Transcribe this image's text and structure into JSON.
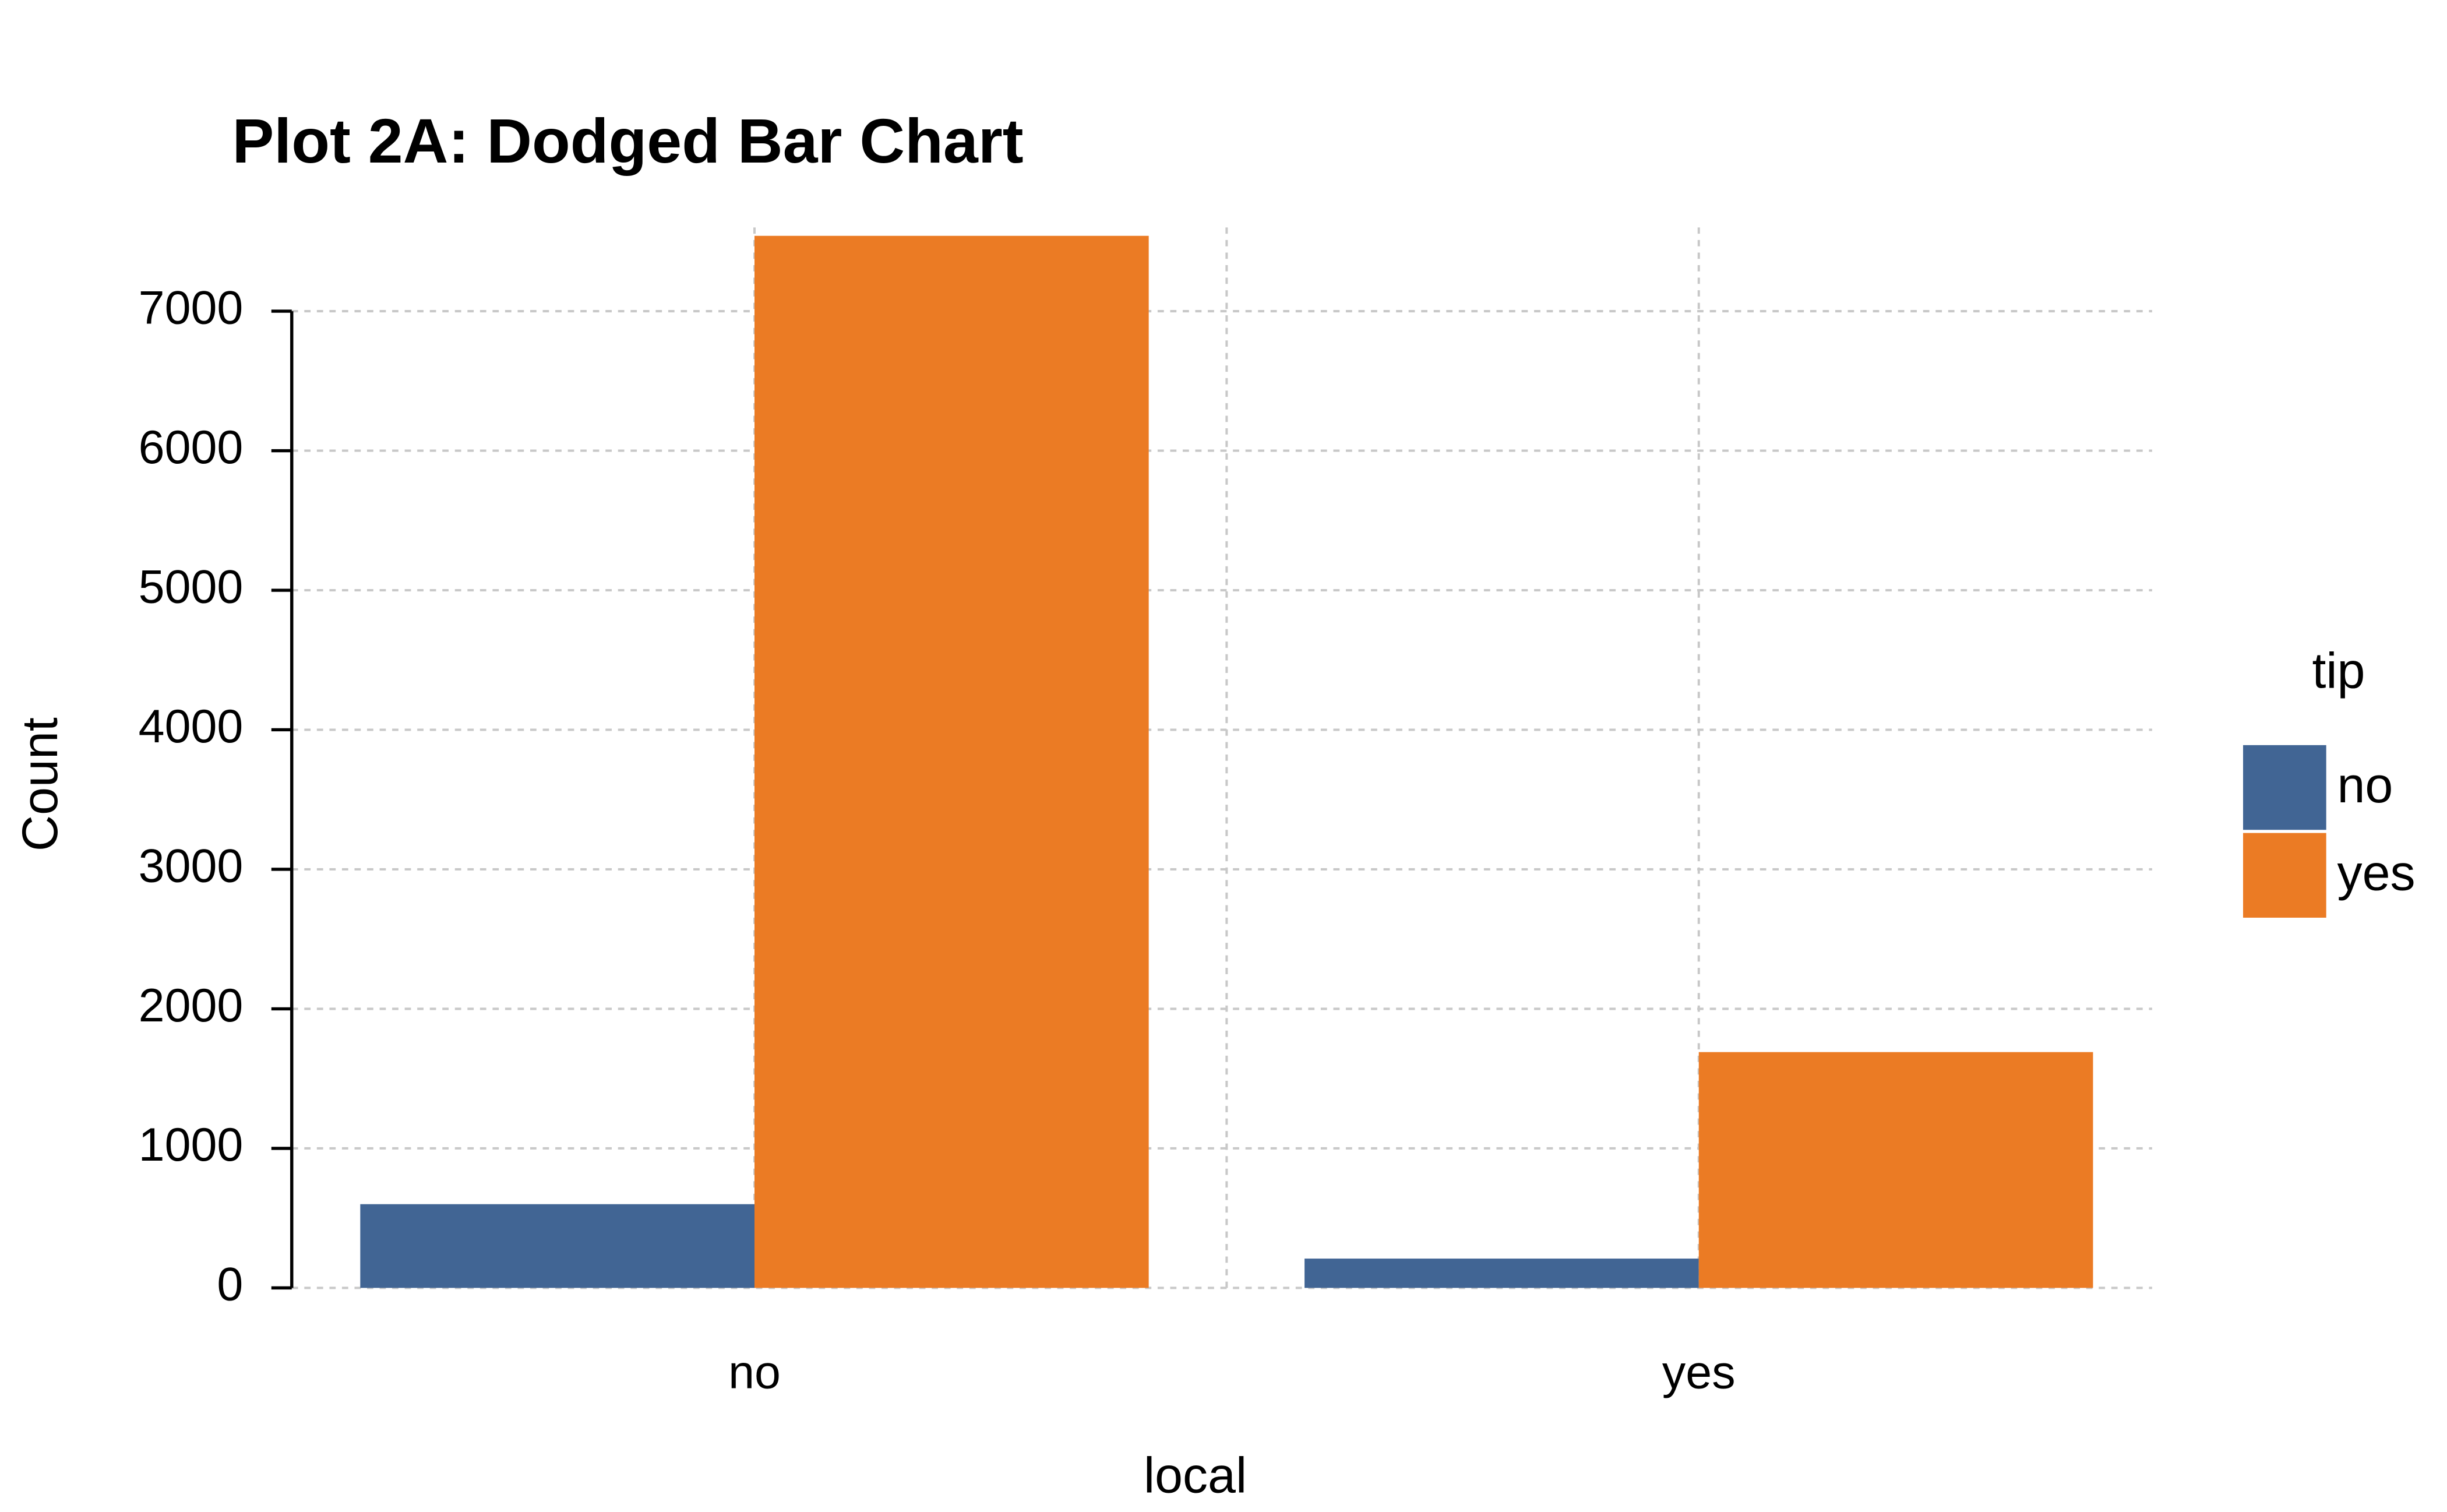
{
  "chart_data": {
    "type": "bar",
    "title": "Plot 2A: Dodged Bar Chart",
    "x_label": "local",
    "y_label": "Count",
    "categories": [
      "no",
      "yes"
    ],
    "series": [
      {
        "name": "no",
        "color": "#416594",
        "values": [
          600,
          210
        ]
      },
      {
        "name": "yes",
        "color": "#eb7b24",
        "values": [
          7540,
          1690
        ]
      }
    ],
    "legend_title": "tip",
    "legend_position": "right",
    "ylim": [
      0,
      7600
    ],
    "yticks": [
      0,
      1000,
      2000,
      3000,
      4000,
      5000,
      6000,
      7000
    ],
    "grid": true
  }
}
